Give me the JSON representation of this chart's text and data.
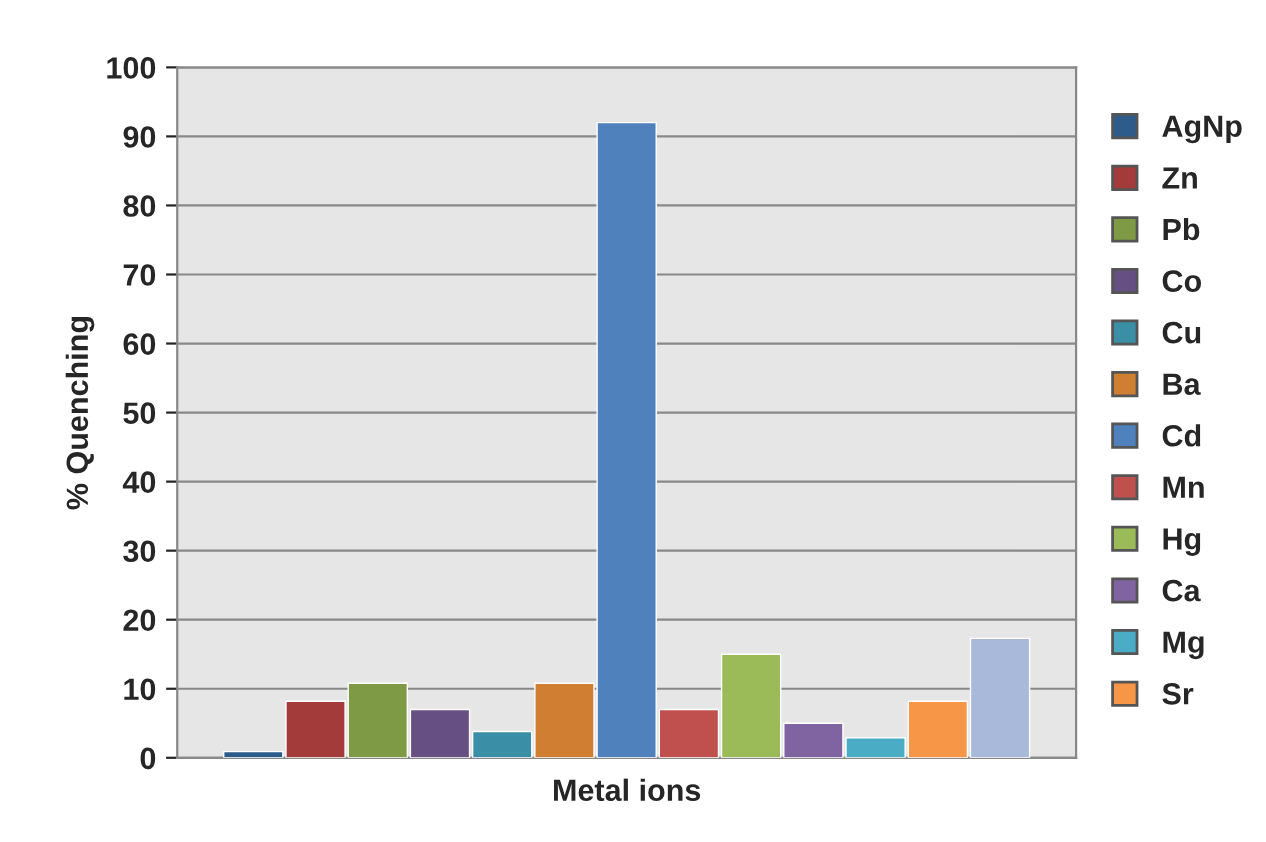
{
  "chart_data": {
    "type": "bar",
    "xlabel": "Metal ions",
    "ylabel": "% Quenching",
    "categories": [
      null
    ],
    "series": [
      {
        "name": "AgNp",
        "color": "#2e5c8a",
        "values": [
          0.9
        ]
      },
      {
        "name": "Zn",
        "color": "#a33b3a",
        "values": [
          8.2
        ]
      },
      {
        "name": "Pb",
        "color": "#7f9a45",
        "values": [
          10.8
        ]
      },
      {
        "name": "Co",
        "color": "#664f82",
        "values": [
          7.0
        ]
      },
      {
        "name": "Cu",
        "color": "#3a8ea6",
        "values": [
          3.8
        ]
      },
      {
        "name": "Ba",
        "color": "#d07e32",
        "values": [
          10.8
        ]
      },
      {
        "name": "Cd",
        "color": "#4f81bd",
        "values": [
          92
        ]
      },
      {
        "name": "Mn",
        "color": "#c0504d",
        "values": [
          7.0
        ]
      },
      {
        "name": "Hg",
        "color": "#9bbb59",
        "values": [
          15
        ]
      },
      {
        "name": "Ca",
        "color": "#8064a2",
        "values": [
          5.0
        ]
      },
      {
        "name": "Mg",
        "color": "#4bacc6",
        "values": [
          2.9
        ]
      },
      {
        "name": "Sr",
        "color": "#f79646",
        "values": [
          8.2
        ]
      },
      {
        "color": "#a9b9d9",
        "values": [
          17.3
        ]
      }
    ],
    "ylim": [
      0,
      100
    ],
    "yticks": [
      0,
      10,
      20,
      30,
      40,
      50,
      60,
      70,
      80,
      90,
      100
    ],
    "grid": "y",
    "legend": "right",
    "tick_labels": "y"
  }
}
